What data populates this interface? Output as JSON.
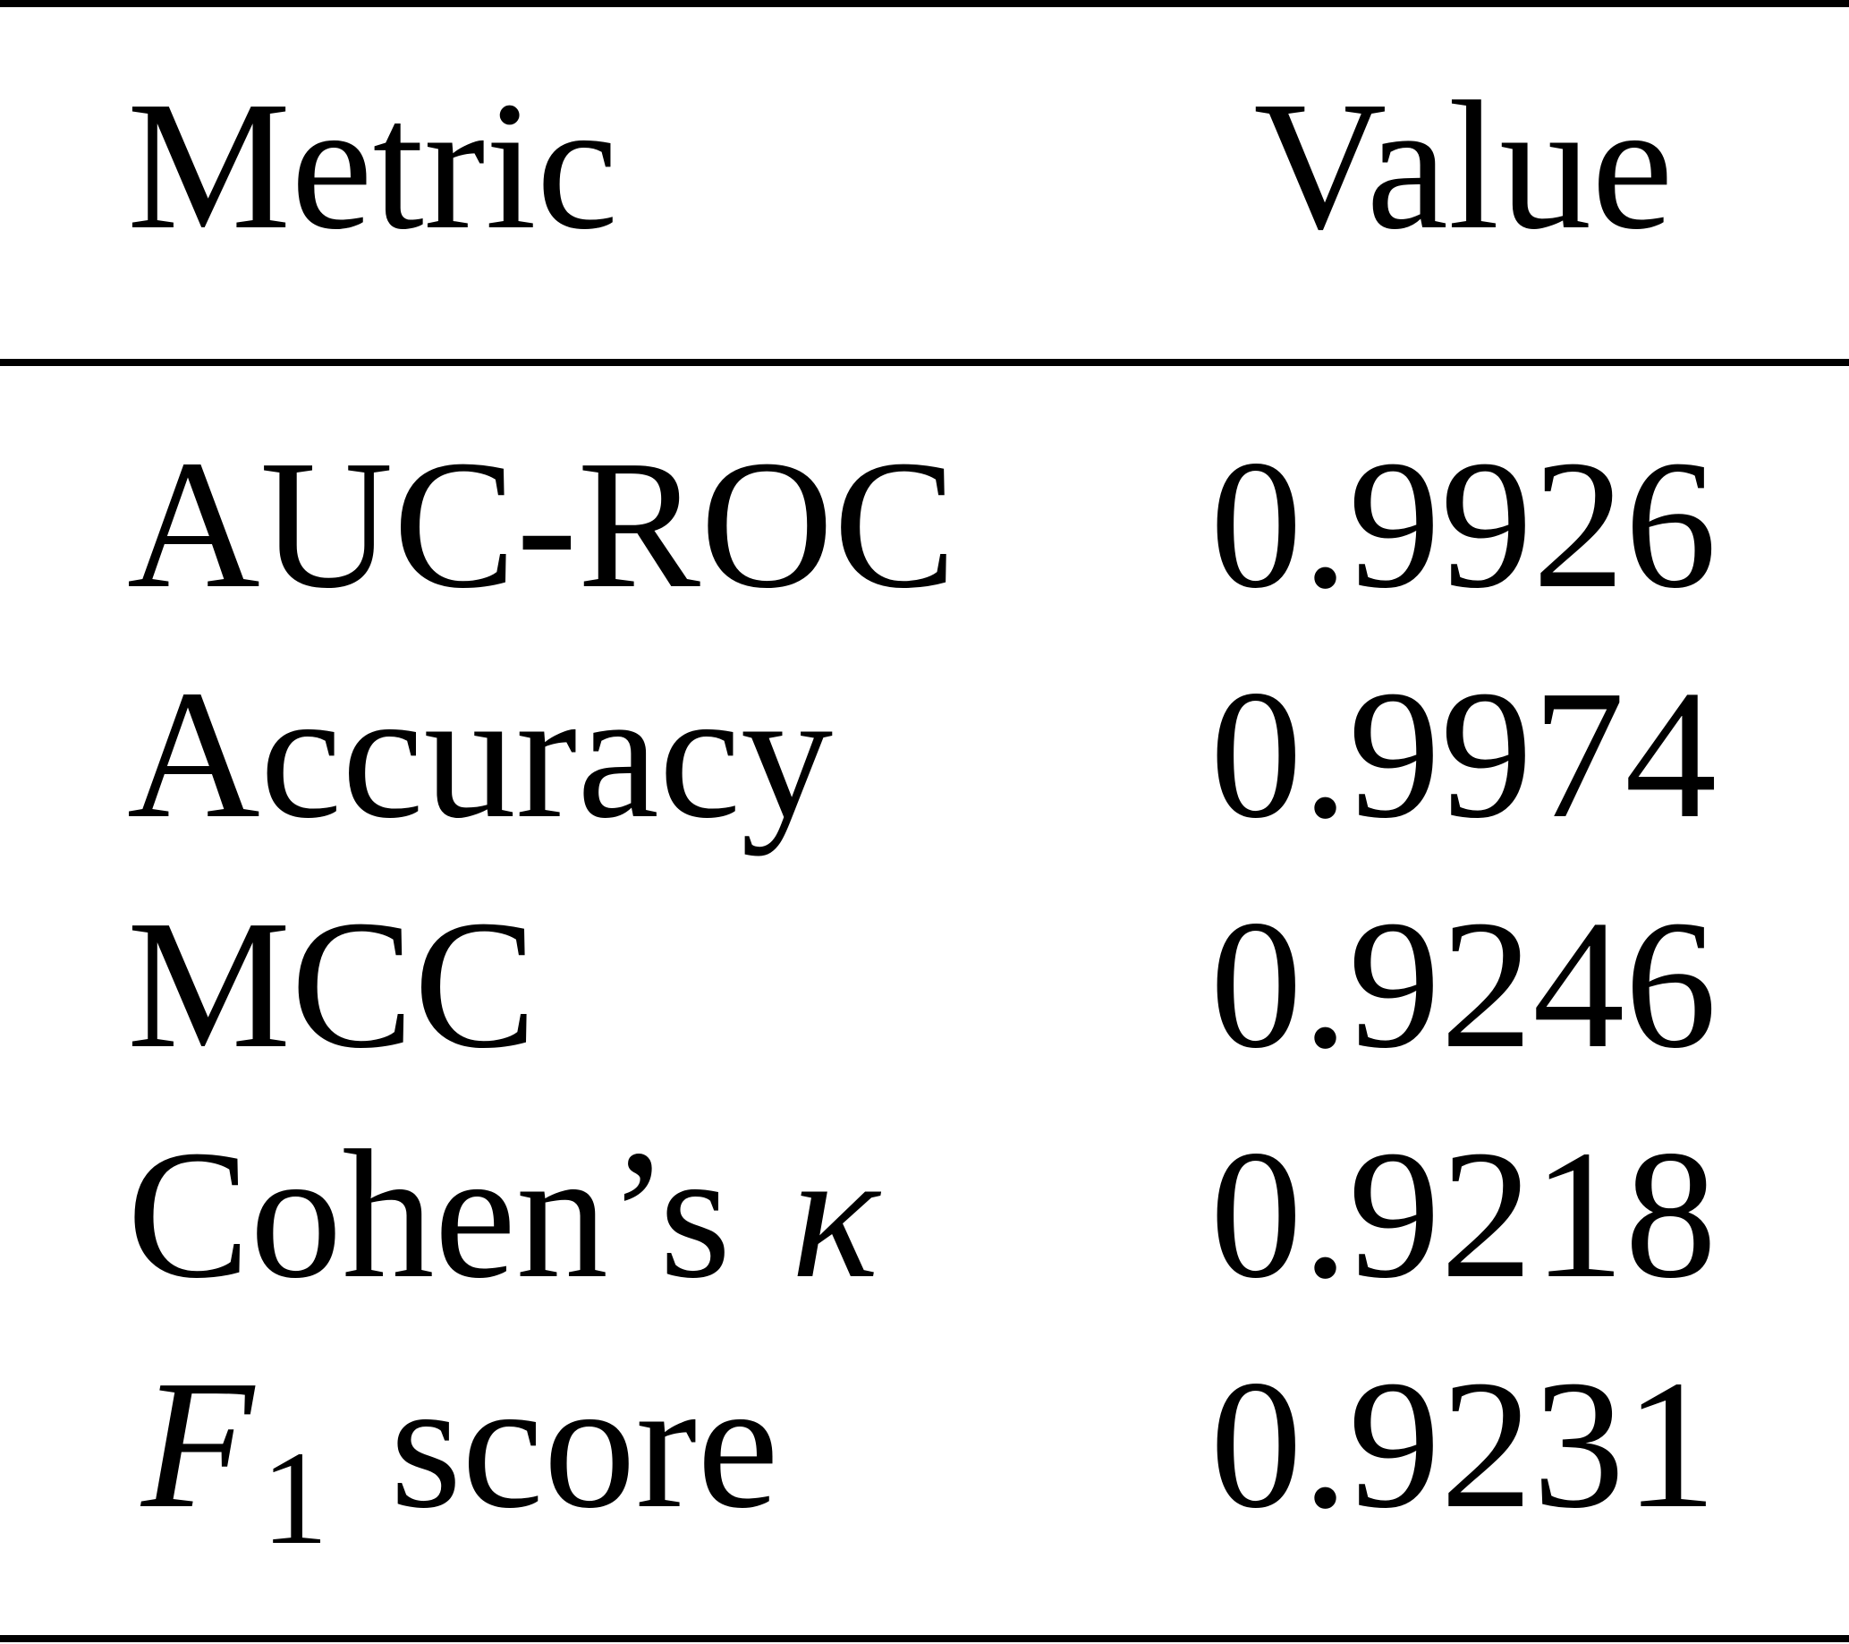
{
  "table": {
    "header": [
      "Metric",
      "Value"
    ],
    "rows": [
      [
        "AUC-ROC",
        0.9926
      ],
      [
        "Accuracy",
        0.9974
      ],
      [
        "MCC",
        0.9246
      ],
      [
        [
          "Cohen’s",
          "κ"
        ],
        0.9218
      ],
      [
        [
          "F",
          "1",
          "score"
        ],
        0.9231
      ]
    ]
  }
}
